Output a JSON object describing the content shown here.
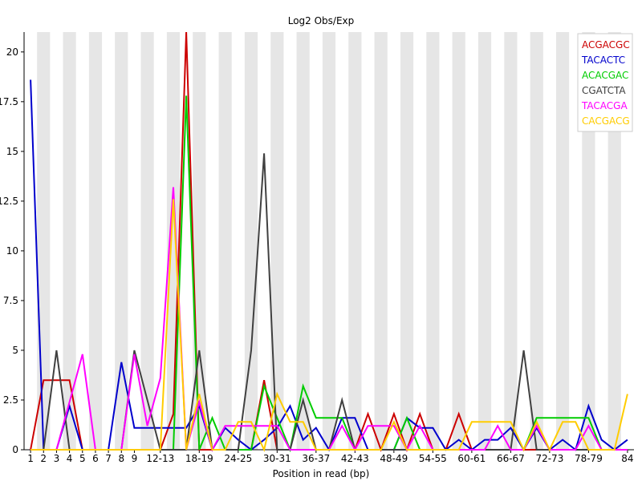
{
  "chart_data": {
    "type": "line",
    "title": "Log2 Obs/Exp",
    "xlabel": "Position in read (bp)",
    "ylabel": "",
    "ylim": [
      0,
      21.0
    ],
    "yticks": [
      "0",
      "2.5",
      "5",
      "7.5",
      "10",
      "12.5",
      "15",
      "17.5",
      "20"
    ],
    "categories": [
      "1",
      "2",
      "3",
      "4",
      "5",
      "6",
      "7",
      "8",
      "9",
      "10-11",
      "12-13",
      "14-15",
      "16-17",
      "18-19",
      "20-21",
      "22-23",
      "24-25",
      "26-27",
      "28-29",
      "30-31",
      "32-33",
      "34-35",
      "36-37",
      "38-39",
      "40-41",
      "42-43",
      "44-45",
      "46-47",
      "48-49",
      "50-51",
      "52-53",
      "54-55",
      "56-57",
      "58-59",
      "60-61",
      "62-63",
      "64-65",
      "66-67",
      "68-69",
      "70-71",
      "72-73",
      "74-75",
      "76-77",
      "78-79",
      "80-81",
      "82-83",
      "84"
    ],
    "xtick_labels": [
      "1",
      "2",
      "3",
      "4",
      "5",
      "6",
      "7",
      "8",
      "9",
      "12-13",
      "18-19",
      "24-25",
      "30-31",
      "36-37",
      "42-43",
      "48-49",
      "54-55",
      "60-61",
      "66-67",
      "72-73",
      "78-79",
      "84"
    ],
    "legend_position": "top-right",
    "grid": "alternating vertical bands",
    "band_color": "#e6e6e6",
    "series": [
      {
        "name": "ACGACGC",
        "color": "#cc0000",
        "values": [
          0,
          3.5,
          3.5,
          3.5,
          0,
          0,
          0,
          0,
          0,
          0,
          0,
          1.8,
          21.0,
          0,
          0,
          0,
          0,
          0,
          3.5,
          0,
          0,
          0,
          0,
          0,
          0,
          0,
          1.8,
          0,
          1.8,
          0,
          1.8,
          0,
          0,
          1.8,
          0,
          0,
          0,
          0,
          0,
          0,
          0,
          0,
          0,
          0,
          0,
          0,
          0
        ]
      },
      {
        "name": "TACACTC",
        "color": "#0000cc",
        "values": [
          18.6,
          0,
          0,
          2.2,
          0,
          0,
          0,
          4.4,
          1.1,
          1.1,
          1.1,
          1.1,
          1.1,
          2.2,
          0,
          1.1,
          0.5,
          0,
          0.5,
          1.1,
          2.2,
          0.5,
          1.1,
          0,
          1.6,
          1.6,
          0,
          0,
          0,
          1.6,
          1.1,
          1.1,
          0,
          0.5,
          0,
          0.5,
          0.5,
          1.1,
          0,
          1.1,
          0,
          0.5,
          0,
          2.2,
          0.5,
          0,
          0.5
        ]
      },
      {
        "name": "ACACGAC",
        "color": "#00cc00",
        "values": [
          0,
          0,
          0,
          0,
          0,
          0,
          0,
          0,
          0,
          0,
          0,
          0,
          17.8,
          0,
          1.6,
          0,
          0,
          0,
          3.2,
          1.6,
          0,
          3.2,
          1.6,
          1.6,
          1.6,
          0,
          0,
          0,
          0,
          1.6,
          0,
          0,
          0,
          0,
          0,
          0,
          0,
          0,
          0,
          1.6,
          1.6,
          1.6,
          1.6,
          1.6,
          0,
          0,
          0
        ]
      },
      {
        "name": "CGATCTA",
        "color": "#404040",
        "values": [
          0,
          0,
          5.0,
          0,
          0,
          0,
          0,
          0,
          5.0,
          2.5,
          0,
          0,
          0,
          5.0,
          0,
          0,
          0,
          5.0,
          14.9,
          0,
          0,
          2.5,
          0,
          0,
          2.5,
          0,
          0,
          0,
          0,
          0,
          0,
          0,
          0,
          0,
          0,
          0,
          0,
          0,
          5.0,
          0,
          0,
          0,
          0,
          0,
          0,
          0,
          0
        ]
      },
      {
        "name": "TACACGA",
        "color": "#ff00ff",
        "values": [
          0,
          0,
          0,
          2.4,
          4.8,
          0,
          0,
          0,
          4.8,
          1.2,
          3.6,
          13.2,
          0,
          2.4,
          0,
          1.2,
          1.2,
          1.2,
          1.2,
          1.2,
          0,
          0,
          0,
          0,
          1.2,
          0,
          1.2,
          1.2,
          1.2,
          0,
          1.2,
          0,
          0,
          0,
          0,
          0,
          1.2,
          0,
          0,
          1.2,
          0,
          0,
          0,
          1.2,
          0,
          0,
          0
        ]
      },
      {
        "name": "CACGACG",
        "color": "#ffcc00",
        "values": [
          0,
          0,
          0,
          0,
          0,
          0,
          0,
          0,
          0,
          0,
          0,
          12.6,
          0,
          2.8,
          0,
          0,
          1.4,
          1.4,
          0,
          2.8,
          1.4,
          1.4,
          0,
          0,
          0,
          0,
          0,
          0,
          1.4,
          0,
          0,
          0,
          0,
          0,
          1.4,
          1.4,
          1.4,
          1.4,
          0,
          1.4,
          0,
          1.4,
          1.4,
          0,
          0,
          0,
          2.8
        ]
      }
    ]
  }
}
